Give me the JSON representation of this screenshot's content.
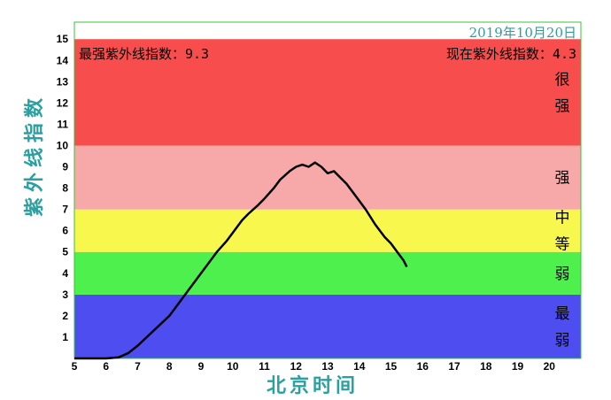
{
  "date": "2019年10月20日",
  "max_label": "最强紫外线指数：9.3",
  "current_label": "现在紫外线指数：4.3",
  "chart_data": {
    "type": "line",
    "xlabel": "北京时间",
    "ylabel": "紫外线指数",
    "xlim": [
      5,
      21
    ],
    "ylim": [
      0,
      15.8
    ],
    "x_ticks": [
      5,
      6,
      7,
      8,
      9,
      10,
      11,
      12,
      13,
      14,
      15,
      16,
      17,
      18,
      19,
      20
    ],
    "y_ticks": [
      1,
      2,
      3,
      4,
      5,
      6,
      7,
      8,
      9,
      10,
      11,
      12,
      13,
      14,
      15
    ],
    "bands": [
      {
        "from": 0,
        "to": 3,
        "color": "#4d4df0",
        "label_lines": [
          "最",
          "弱"
        ]
      },
      {
        "from": 3,
        "to": 5,
        "color": "#4df04d",
        "label_lines": [
          "弱"
        ]
      },
      {
        "from": 5,
        "to": 7,
        "color": "#f7f74d",
        "label_lines": [
          "中",
          "等"
        ]
      },
      {
        "from": 7,
        "to": 10,
        "color": "#f7a8a8",
        "label_lines": [
          "强"
        ]
      },
      {
        "from": 10,
        "to": 15,
        "color": "#f74d4d",
        "label_lines": [
          "很",
          "强"
        ]
      }
    ],
    "series": [
      {
        "color": "#000000",
        "x": [
          5.0,
          6.0,
          6.4,
          6.7,
          7.0,
          7.5,
          8.0,
          8.3,
          8.6,
          8.9,
          9.2,
          9.5,
          9.8,
          10.0,
          10.3,
          10.5,
          10.8,
          11.0,
          11.3,
          11.5,
          11.8,
          12.0,
          12.2,
          12.4,
          12.6,
          12.8,
          13.0,
          13.2,
          13.4,
          13.6,
          13.8,
          14.0,
          14.2,
          14.5,
          14.8,
          15.0,
          15.2,
          15.4,
          15.5
        ],
        "y": [
          0.0,
          0.0,
          0.05,
          0.25,
          0.6,
          1.3,
          2.0,
          2.6,
          3.2,
          3.8,
          4.4,
          5.0,
          5.5,
          5.9,
          6.5,
          6.8,
          7.2,
          7.5,
          8.0,
          8.4,
          8.8,
          9.0,
          9.1,
          9.0,
          9.2,
          9.0,
          8.7,
          8.8,
          8.5,
          8.2,
          7.8,
          7.4,
          7.0,
          6.3,
          5.7,
          5.4,
          5.0,
          4.6,
          4.3
        ]
      }
    ]
  }
}
